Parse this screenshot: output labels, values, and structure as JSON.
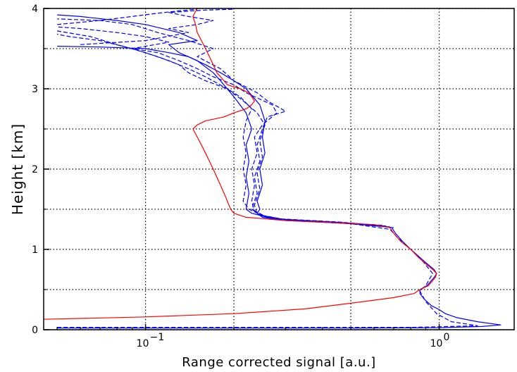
{
  "chart_data": {
    "type": "line",
    "title": "",
    "xlabel": "Range corrected signal [a.u.]",
    "ylabel": "Height [km]",
    "xscale": "log",
    "xlim": [
      0.045,
      1.8
    ],
    "ylim": [
      0,
      4
    ],
    "grid": true,
    "legend": "none",
    "x_ticks": [
      {
        "value": 0.1,
        "base": "10",
        "exp": "−1"
      },
      {
        "value": 1.0,
        "base": "10",
        "exp": "0"
      }
    ],
    "y_ticks": [
      {
        "value": 0,
        "label": "0"
      },
      {
        "value": 1,
        "label": "1"
      },
      {
        "value": 2,
        "label": "2"
      },
      {
        "value": 3,
        "label": "3"
      },
      {
        "value": 4,
        "label": "4"
      }
    ],
    "y_minor_ticks": [
      0.5,
      1.5,
      2.5,
      3.5
    ],
    "x_grid_values": [
      0.1,
      0.2,
      0.5,
      1.0
    ],
    "series": [
      {
        "color": "#0000ff",
        "style": "solid",
        "points": [
          [
            0.05,
            0.02
          ],
          [
            0.5,
            0.02
          ],
          [
            1.0,
            0.025
          ],
          [
            1.4,
            0.04
          ],
          [
            1.62,
            0.06
          ],
          [
            1.35,
            0.1
          ],
          [
            1.15,
            0.15
          ],
          [
            1.05,
            0.2
          ],
          [
            1.0,
            0.25
          ],
          [
            0.94,
            0.3
          ],
          [
            0.89,
            0.38
          ],
          [
            0.86,
            0.45
          ],
          [
            0.86,
            0.5
          ],
          [
            0.91,
            0.55
          ],
          [
            0.96,
            0.65
          ],
          [
            0.98,
            0.7
          ],
          [
            0.96,
            0.75
          ],
          [
            0.91,
            0.82
          ],
          [
            0.86,
            0.9
          ],
          [
            0.8,
            1.0
          ],
          [
            0.75,
            1.1
          ],
          [
            0.71,
            1.2
          ],
          [
            0.69,
            1.27
          ],
          [
            0.62,
            1.3
          ],
          [
            0.45,
            1.33
          ],
          [
            0.3,
            1.36
          ],
          [
            0.25,
            1.4
          ],
          [
            0.24,
            1.45
          ],
          [
            0.245,
            1.5
          ],
          [
            0.24,
            1.6
          ],
          [
            0.25,
            1.8
          ],
          [
            0.245,
            2.0
          ],
          [
            0.255,
            2.2
          ],
          [
            0.25,
            2.4
          ],
          [
            0.255,
            2.6
          ],
          [
            0.245,
            2.8
          ],
          [
            0.22,
            3.0
          ],
          [
            0.2,
            3.1
          ],
          [
            0.18,
            3.2
          ],
          [
            0.16,
            3.3
          ],
          [
            0.14,
            3.4
          ],
          [
            0.12,
            3.45
          ],
          [
            0.1,
            3.5
          ],
          [
            0.07,
            3.52
          ],
          [
            0.05,
            3.53
          ]
        ]
      },
      {
        "color": "#0000ff",
        "style": "solid",
        "points": [
          [
            0.7,
            1.27
          ],
          [
            0.5,
            1.32
          ],
          [
            0.32,
            1.36
          ],
          [
            0.26,
            1.4
          ],
          [
            0.23,
            1.45
          ],
          [
            0.22,
            1.5
          ],
          [
            0.225,
            1.7
          ],
          [
            0.22,
            1.9
          ],
          [
            0.225,
            2.1
          ],
          [
            0.22,
            2.3
          ],
          [
            0.23,
            2.5
          ],
          [
            0.22,
            2.7
          ],
          [
            0.2,
            2.9
          ],
          [
            0.18,
            3.1
          ],
          [
            0.17,
            3.2
          ],
          [
            0.15,
            3.35
          ],
          [
            0.13,
            3.45
          ],
          [
            0.12,
            3.55
          ],
          [
            0.15,
            3.6
          ],
          [
            0.13,
            3.7
          ],
          [
            0.1,
            3.8
          ],
          [
            0.08,
            3.85
          ],
          [
            0.06,
            3.9
          ],
          [
            0.05,
            3.92
          ]
        ]
      },
      {
        "color": "#0000ff",
        "style": "dashed",
        "points": [
          [
            0.05,
            0.03
          ],
          [
            0.3,
            0.03
          ],
          [
            0.8,
            0.03
          ],
          [
            1.1,
            0.04
          ],
          [
            1.35,
            0.05
          ],
          [
            1.1,
            0.1
          ],
          [
            0.98,
            0.2
          ],
          [
            0.9,
            0.35
          ],
          [
            0.86,
            0.48
          ],
          [
            0.9,
            0.55
          ],
          [
            0.95,
            0.7
          ],
          [
            0.88,
            0.85
          ],
          [
            0.8,
            1.0
          ],
          [
            0.72,
            1.15
          ],
          [
            0.68,
            1.25
          ],
          [
            0.5,
            1.32
          ],
          [
            0.32,
            1.36
          ],
          [
            0.26,
            1.4
          ],
          [
            0.235,
            1.48
          ],
          [
            0.23,
            1.6
          ],
          [
            0.235,
            1.8
          ],
          [
            0.23,
            2.0
          ],
          [
            0.24,
            2.2
          ],
          [
            0.235,
            2.4
          ],
          [
            0.25,
            2.55
          ],
          [
            0.28,
            2.7
          ],
          [
            0.27,
            2.8
          ],
          [
            0.22,
            2.95
          ],
          [
            0.2,
            3.05
          ],
          [
            0.17,
            3.15
          ],
          [
            0.15,
            3.25
          ],
          [
            0.13,
            3.35
          ],
          [
            0.11,
            3.45
          ],
          [
            0.09,
            3.5
          ],
          [
            0.07,
            3.6
          ],
          [
            0.055,
            3.65
          ],
          [
            0.05,
            3.68
          ]
        ]
      },
      {
        "color": "#0000ff",
        "style": "dashed",
        "points": [
          [
            0.68,
            1.28
          ],
          [
            0.48,
            1.33
          ],
          [
            0.3,
            1.37
          ],
          [
            0.25,
            1.42
          ],
          [
            0.225,
            1.5
          ],
          [
            0.215,
            1.6
          ],
          [
            0.22,
            1.8
          ],
          [
            0.215,
            2.0
          ],
          [
            0.22,
            2.2
          ],
          [
            0.215,
            2.4
          ],
          [
            0.22,
            2.6
          ],
          [
            0.23,
            2.75
          ],
          [
            0.21,
            2.9
          ],
          [
            0.19,
            3.0
          ],
          [
            0.16,
            3.15
          ],
          [
            0.14,
            3.25
          ],
          [
            0.12,
            3.35
          ],
          [
            0.1,
            3.45
          ],
          [
            0.08,
            3.55
          ],
          [
            0.065,
            3.65
          ],
          [
            0.05,
            3.72
          ]
        ]
      },
      {
        "color": "#0000ff",
        "style": "dashed",
        "points": [
          [
            0.66,
            1.29
          ],
          [
            0.46,
            1.34
          ],
          [
            0.29,
            1.38
          ],
          [
            0.245,
            1.43
          ],
          [
            0.23,
            1.5
          ],
          [
            0.24,
            1.7
          ],
          [
            0.235,
            1.9
          ],
          [
            0.245,
            2.1
          ],
          [
            0.24,
            2.3
          ],
          [
            0.25,
            2.5
          ],
          [
            0.26,
            2.65
          ],
          [
            0.3,
            2.72
          ],
          [
            0.26,
            2.85
          ],
          [
            0.24,
            2.95
          ],
          [
            0.2,
            3.1
          ],
          [
            0.18,
            3.25
          ],
          [
            0.15,
            3.4
          ],
          [
            0.17,
            3.5
          ],
          [
            0.14,
            3.6
          ],
          [
            0.11,
            3.7
          ],
          [
            0.09,
            3.8
          ],
          [
            0.07,
            3.85
          ],
          [
            0.05,
            3.87
          ]
        ]
      },
      {
        "color": "#0000ff",
        "style": "dashed",
        "points": [
          [
            0.64,
            1.3
          ],
          [
            0.44,
            1.34
          ],
          [
            0.28,
            1.38
          ],
          [
            0.24,
            1.44
          ],
          [
            0.235,
            1.55
          ],
          [
            0.245,
            1.75
          ],
          [
            0.24,
            1.95
          ],
          [
            0.25,
            2.15
          ],
          [
            0.245,
            2.35
          ],
          [
            0.255,
            2.55
          ],
          [
            0.24,
            2.7
          ],
          [
            0.215,
            2.85
          ],
          [
            0.19,
            3.0
          ],
          [
            0.16,
            3.1
          ],
          [
            0.14,
            3.2
          ],
          [
            0.13,
            3.3
          ],
          [
            0.11,
            3.4
          ],
          [
            0.09,
            3.5
          ],
          [
            0.12,
            3.58
          ],
          [
            0.1,
            3.65
          ],
          [
            0.08,
            3.7
          ],
          [
            0.06,
            3.75
          ],
          [
            0.05,
            3.77
          ]
        ]
      },
      {
        "color": "#0000ff",
        "style": "dashed",
        "points": [
          [
            0.06,
            3.55
          ],
          [
            0.1,
            3.6
          ],
          [
            0.14,
            3.7
          ],
          [
            0.12,
            3.75
          ],
          [
            0.15,
            3.8
          ],
          [
            0.17,
            3.85
          ],
          [
            0.14,
            3.9
          ],
          [
            0.12,
            3.95
          ],
          [
            0.16,
            3.98
          ],
          [
            0.2,
            3.99
          ]
        ]
      },
      {
        "color": "#0000ff",
        "style": "dashed",
        "points": [
          [
            0.05,
            3.8
          ],
          [
            0.07,
            3.85
          ],
          [
            0.09,
            3.9
          ],
          [
            0.11,
            3.94
          ],
          [
            0.13,
            3.97
          ],
          [
            0.15,
            3.99
          ]
        ]
      },
      {
        "color": "#ff0000",
        "style": "solid",
        "points": [
          [
            0.045,
            0.13
          ],
          [
            0.1,
            0.16
          ],
          [
            0.2,
            0.2
          ],
          [
            0.35,
            0.26
          ],
          [
            0.5,
            0.33
          ],
          [
            0.7,
            0.4
          ],
          [
            0.82,
            0.45
          ],
          [
            0.86,
            0.5
          ],
          [
            0.92,
            0.55
          ],
          [
            0.97,
            0.65
          ],
          [
            0.98,
            0.7
          ],
          [
            0.95,
            0.75
          ],
          [
            0.9,
            0.82
          ],
          [
            0.85,
            0.9
          ],
          [
            0.8,
            1.0
          ],
          [
            0.74,
            1.1
          ],
          [
            0.7,
            1.2
          ],
          [
            0.68,
            1.27
          ],
          [
            0.6,
            1.31
          ],
          [
            0.45,
            1.33
          ],
          [
            0.3,
            1.36
          ],
          [
            0.22,
            1.4
          ],
          [
            0.2,
            1.45
          ],
          [
            0.195,
            1.5
          ],
          [
            0.19,
            1.6
          ],
          [
            0.185,
            1.7
          ],
          [
            0.18,
            1.8
          ],
          [
            0.175,
            1.9
          ],
          [
            0.17,
            2.0
          ],
          [
            0.165,
            2.1
          ],
          [
            0.16,
            2.2
          ],
          [
            0.155,
            2.3
          ],
          [
            0.15,
            2.4
          ],
          [
            0.145,
            2.5
          ],
          [
            0.15,
            2.55
          ],
          [
            0.16,
            2.6
          ],
          [
            0.185,
            2.65
          ],
          [
            0.2,
            2.7
          ],
          [
            0.22,
            2.75
          ],
          [
            0.23,
            2.8
          ],
          [
            0.235,
            2.85
          ],
          [
            0.23,
            2.9
          ],
          [
            0.225,
            2.95
          ],
          [
            0.21,
            3.0
          ],
          [
            0.19,
            3.05
          ],
          [
            0.185,
            3.1
          ],
          [
            0.18,
            3.15
          ],
          [
            0.175,
            3.2
          ],
          [
            0.17,
            3.3
          ],
          [
            0.165,
            3.4
          ],
          [
            0.16,
            3.5
          ],
          [
            0.155,
            3.6
          ],
          [
            0.15,
            3.7
          ],
          [
            0.148,
            3.8
          ],
          [
            0.145,
            3.9
          ],
          [
            0.15,
            4.0
          ]
        ]
      }
    ]
  }
}
